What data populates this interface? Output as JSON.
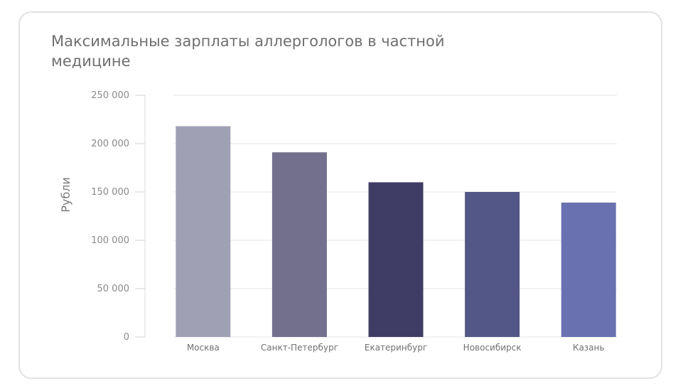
{
  "chart_data": {
    "type": "bar",
    "title": "Максимальные зарплаты аллергологов в частной медицине",
    "ylabel": "Рубли",
    "xlabel": "",
    "ylim": [
      0,
      250000
    ],
    "yticks": [
      {
        "value": 0,
        "label": "0"
      },
      {
        "value": 50000,
        "label": "50 000"
      },
      {
        "value": 100000,
        "label": "100 000"
      },
      {
        "value": 150000,
        "label": "150 000"
      },
      {
        "value": 200000,
        "label": "200 000"
      },
      {
        "value": 250000,
        "label": "250 000"
      }
    ],
    "categories": [
      "Москва",
      "Санкт-Петербург",
      "Екатеринбург",
      "Новосибирск",
      "Казань"
    ],
    "values": [
      218000,
      191000,
      160000,
      150000,
      139000
    ],
    "colors": [
      "#a0a0b5",
      "#73708d",
      "#3f3d65",
      "#535787",
      "#6971b0"
    ],
    "grid": true,
    "legend": "none"
  }
}
